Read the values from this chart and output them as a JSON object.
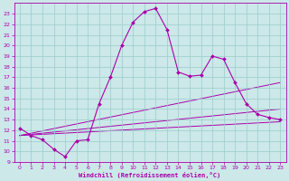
{
  "xlabel": "Windchill (Refroidissement éolien,°C)",
  "bg_color": "#cce8e8",
  "line_color": "#aa00aa",
  "grid_color": "#99cccc",
  "xlim": [
    -0.5,
    23.5
  ],
  "ylim": [
    9,
    24
  ],
  "xticks": [
    0,
    1,
    2,
    3,
    4,
    5,
    6,
    7,
    8,
    9,
    10,
    11,
    12,
    13,
    14,
    15,
    16,
    17,
    18,
    19,
    20,
    21,
    22,
    23
  ],
  "yticks": [
    9,
    10,
    11,
    12,
    13,
    14,
    15,
    16,
    17,
    18,
    19,
    20,
    21,
    22,
    23
  ],
  "main_series": {
    "x": [
      0,
      1,
      2,
      3,
      4,
      5,
      6,
      7,
      8,
      9,
      10,
      11,
      12,
      13,
      14,
      15,
      16,
      17,
      18,
      19,
      20,
      21,
      22,
      23
    ],
    "y": [
      12.2,
      11.5,
      11.1,
      10.2,
      9.5,
      11.0,
      11.1,
      14.5,
      17.0,
      20.0,
      22.2,
      23.2,
      23.5,
      21.5,
      17.5,
      17.1,
      17.2,
      19.0,
      18.7,
      16.5,
      14.5,
      13.5,
      13.2,
      13.0
    ]
  },
  "fan_lines": [
    {
      "x": [
        0,
        23
      ],
      "y": [
        11.5,
        12.8
      ]
    },
    {
      "x": [
        0,
        23
      ],
      "y": [
        11.5,
        14.0
      ]
    },
    {
      "x": [
        0,
        23
      ],
      "y": [
        11.5,
        16.5
      ]
    }
  ]
}
